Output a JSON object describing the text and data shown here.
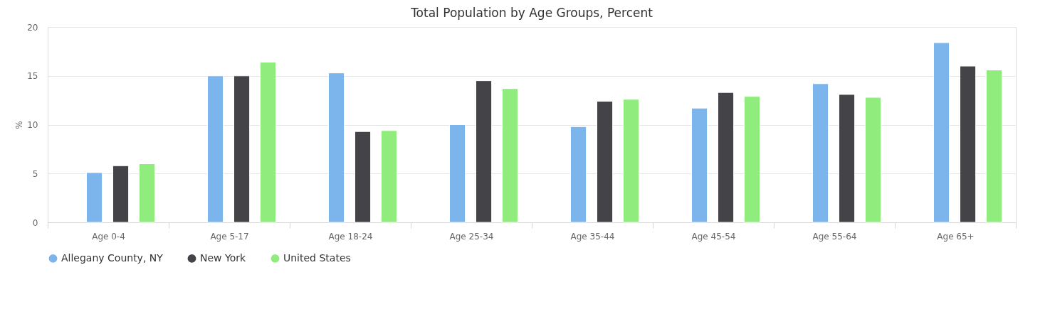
{
  "chart_data": {
    "type": "bar",
    "title": "Total Population by Age Groups, Percent",
    "ylabel": "%",
    "categories": [
      "Age 0-4",
      "Age 5-17",
      "Age 18-24",
      "Age 25-34",
      "Age 35-44",
      "Age 45-54",
      "Age 55-64",
      "Age 65+"
    ],
    "series": [
      {
        "name": "Allegany County, NY",
        "color": "#7cb5ec",
        "values": [
          5.1,
          15.0,
          15.3,
          10.0,
          9.8,
          11.7,
          14.2,
          18.4
        ]
      },
      {
        "name": "New York",
        "color": "#434348",
        "values": [
          5.8,
          15.0,
          9.3,
          14.5,
          12.4,
          13.3,
          13.1,
          16.0
        ]
      },
      {
        "name": "United States",
        "color": "#90ed7d",
        "values": [
          6.0,
          16.4,
          9.4,
          13.7,
          12.6,
          12.9,
          12.8,
          15.6
        ]
      }
    ],
    "ylim": [
      0,
      20
    ],
    "yticks": [
      0,
      5,
      10,
      15,
      20
    ],
    "grid": "y",
    "legend": "bottom"
  }
}
